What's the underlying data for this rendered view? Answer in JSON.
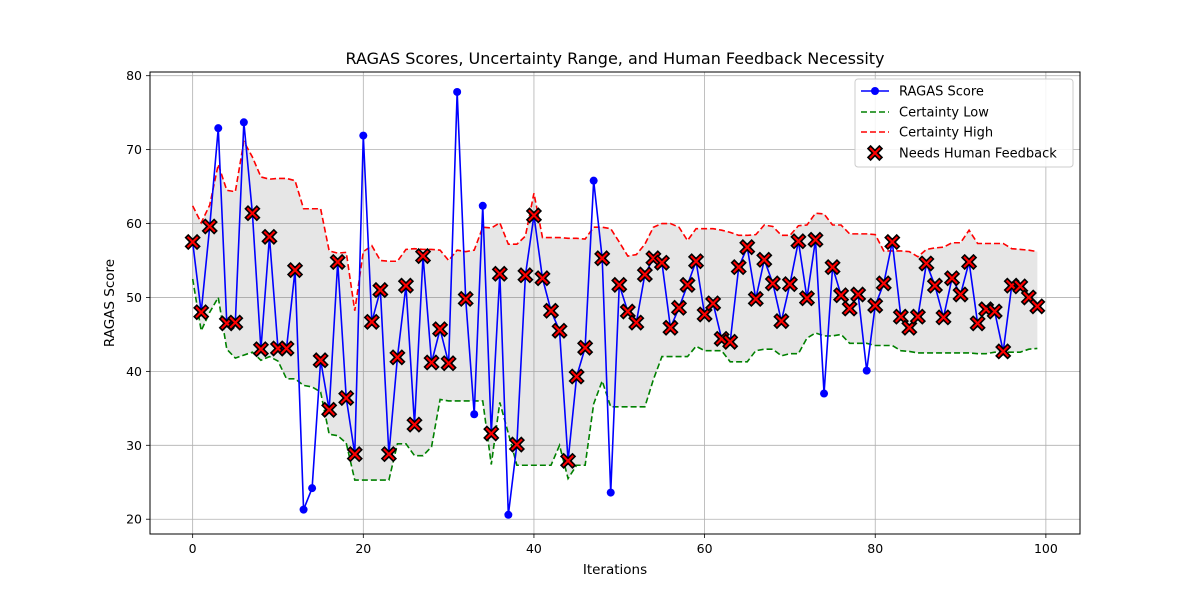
{
  "chart_data": {
    "type": "line",
    "title": "RAGAS Scores, Uncertainty Range, and Human Feedback Necessity",
    "xlabel": "Iterations",
    "ylabel": "RAGAS Score",
    "xlim": [
      -5,
      104
    ],
    "ylim": [
      18,
      80.5
    ],
    "xticks": [
      0,
      20,
      40,
      60,
      80,
      100
    ],
    "yticks": [
      20,
      30,
      40,
      50,
      60,
      70,
      80
    ],
    "grid": true,
    "legend_position": "top-right",
    "series": [
      {
        "name": "RAGAS Score",
        "color": "#0000ff",
        "values": [
          57.5,
          48.0,
          59.6,
          72.9,
          46.5,
          46.6,
          73.7,
          61.4,
          43.0,
          58.2,
          43.1,
          43.1,
          53.7,
          21.3,
          24.2,
          41.5,
          34.8,
          54.8,
          36.4,
          28.8,
          71.9,
          46.7,
          51.0,
          28.8,
          41.9,
          51.6,
          32.8,
          55.6,
          41.2,
          45.7,
          41.1,
          77.8,
          49.8,
          34.2,
          62.4,
          31.6,
          53.2,
          20.6,
          30.1,
          53.0,
          61.1,
          52.6,
          48.2,
          45.5,
          27.9,
          39.3,
          43.2,
          65.8,
          55.3,
          23.6,
          51.7,
          48.1,
          46.6,
          53.1,
          55.3,
          54.7,
          45.9,
          48.6,
          51.7,
          54.9,
          47.7,
          49.2,
          44.4,
          44.0,
          54.1,
          56.8,
          49.8,
          55.1,
          51.9,
          46.8,
          51.8,
          57.6,
          49.9,
          57.8,
          37.0,
          54.1,
          50.3,
          48.5,
          50.4,
          40.1,
          48.9,
          51.9,
          57.5,
          47.4,
          45.9,
          47.4,
          54.6,
          51.6,
          47.3,
          52.6,
          50.4,
          54.8,
          46.5,
          48.4,
          48.1,
          42.7,
          51.6,
          51.5,
          50.0,
          48.8
        ]
      },
      {
        "name": "Certainty Low",
        "color": "#008000",
        "values": [
          52.5,
          45.5,
          48.0,
          50.0,
          43.0,
          41.8,
          42.2,
          42.6,
          41.5,
          42.0,
          41.4,
          39.0,
          39.0,
          38.1,
          37.9,
          37.2,
          31.5,
          31.3,
          30.3,
          25.3,
          25.3,
          25.3,
          25.3,
          25.3,
          30.2,
          30.2,
          28.6,
          28.6,
          29.8,
          36.2,
          36.0,
          36.0,
          36.0,
          36.0,
          36.0,
          27.4,
          35.8,
          31.6,
          27.3,
          27.3,
          27.3,
          27.3,
          27.3,
          30.0,
          25.5,
          27.3,
          27.3,
          35.6,
          38.7,
          35.2,
          35.2,
          35.2,
          35.2,
          35.2,
          38.9,
          42.0,
          42.0,
          42.0,
          42.0,
          43.4,
          42.8,
          42.8,
          42.8,
          41.3,
          41.3,
          41.3,
          42.8,
          43.0,
          43.0,
          42.1,
          42.4,
          42.4,
          44.5,
          45.2,
          44.8,
          44.8,
          45.0,
          43.8,
          43.8,
          43.8,
          43.5,
          43.5,
          43.5,
          42.8,
          42.7,
          42.5,
          42.5,
          42.5,
          42.5,
          42.5,
          42.5,
          42.5,
          42.4,
          42.4,
          42.6,
          42.6,
          42.6,
          42.6,
          43.0,
          43.1
        ]
      },
      {
        "name": "Certainty High",
        "color": "#ff0000",
        "values": [
          62.4,
          60.1,
          62.5,
          68.0,
          64.5,
          64.3,
          71.1,
          69.0,
          66.3,
          66.0,
          66.1,
          66.1,
          65.8,
          62.0,
          62.0,
          62.0,
          56.3,
          56.0,
          56.1,
          48.2,
          56.2,
          57.0,
          55.0,
          54.9,
          54.9,
          56.5,
          56.6,
          56.5,
          56.5,
          56.4,
          55.0,
          56.4,
          56.2,
          56.4,
          59.5,
          59.4,
          60.1,
          57.2,
          57.2,
          58.3,
          64.1,
          58.1,
          58.1,
          58.1,
          58.0,
          58.0,
          57.9,
          59.5,
          59.5,
          59.3,
          57.5,
          55.6,
          55.8,
          57.2,
          59.5,
          60.0,
          60.0,
          59.5,
          57.7,
          59.3,
          59.3,
          59.3,
          59.1,
          58.8,
          58.4,
          58.4,
          58.5,
          59.8,
          59.6,
          58.4,
          58.4,
          59.7,
          59.8,
          61.4,
          61.3,
          59.8,
          59.8,
          58.6,
          58.6,
          58.6,
          58.5,
          56.3,
          56.3,
          56.3,
          56.2,
          55.5,
          56.5,
          56.7,
          56.8,
          57.4,
          57.4,
          59.1,
          57.3,
          57.3,
          57.3,
          57.3,
          56.6,
          56.5,
          56.4,
          56.2
        ]
      }
    ],
    "feedback_series": {
      "name": "Needs Human Feedback",
      "color": "#ff0000",
      "x": [
        0,
        1,
        2,
        4,
        5,
        7,
        8,
        9,
        10,
        11,
        12,
        15,
        16,
        17,
        18,
        19,
        21,
        22,
        23,
        24,
        25,
        26,
        27,
        28,
        29,
        30,
        32,
        35,
        36,
        38,
        39,
        40,
        41,
        42,
        43,
        44,
        45,
        46,
        48,
        50,
        51,
        52,
        53,
        54,
        55,
        56,
        57,
        58,
        59,
        60,
        61,
        62,
        63,
        64,
        65,
        66,
        67,
        68,
        69,
        70,
        71,
        72,
        73,
        75,
        76,
        77,
        78,
        80,
        81,
        82,
        83,
        84,
        85,
        86,
        87,
        88,
        89,
        90,
        91,
        92,
        93,
        94,
        95,
        96,
        97,
        98,
        99
      ],
      "y": [
        57.5,
        48.0,
        59.6,
        46.5,
        46.6,
        61.4,
        43.0,
        58.2,
        43.1,
        43.1,
        53.7,
        41.5,
        34.8,
        54.8,
        36.4,
        28.8,
        46.7,
        51.0,
        28.8,
        41.9,
        51.6,
        32.8,
        55.6,
        41.2,
        45.7,
        41.1,
        49.8,
        31.6,
        53.2,
        30.1,
        53.0,
        61.1,
        52.6,
        48.2,
        45.5,
        27.9,
        39.3,
        43.2,
        55.3,
        51.7,
        48.1,
        46.6,
        53.1,
        55.3,
        54.7,
        45.9,
        48.6,
        51.7,
        54.9,
        47.7,
        49.2,
        44.4,
        44.0,
        54.1,
        56.8,
        49.8,
        55.1,
        51.9,
        46.8,
        51.8,
        57.6,
        49.9,
        57.8,
        54.1,
        50.3,
        48.5,
        50.4,
        48.9,
        51.9,
        57.5,
        47.4,
        45.9,
        47.4,
        54.6,
        51.6,
        47.3,
        52.6,
        50.4,
        54.8,
        46.5,
        48.4,
        48.1,
        42.7,
        51.6,
        51.5,
        50.0,
        48.8
      ]
    }
  }
}
